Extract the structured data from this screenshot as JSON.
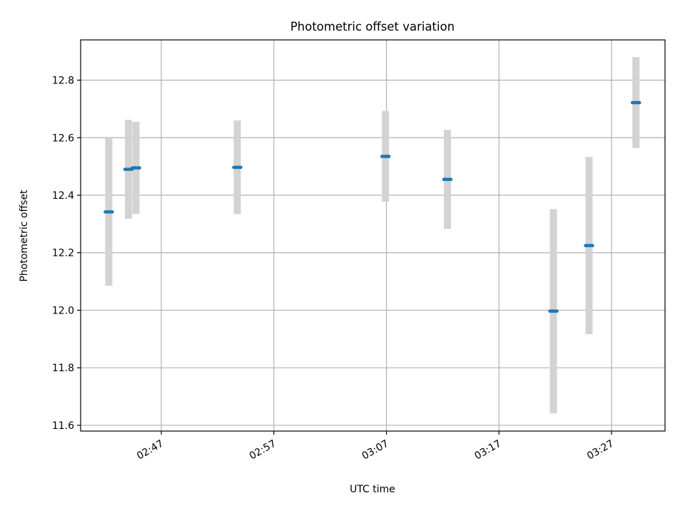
{
  "chart_data": {
    "type": "scatter",
    "title": "Photometric offset variation",
    "xlabel": "UTC time",
    "ylabel": "Photometric offset",
    "x_ticks": [
      "02:47",
      "02:57",
      "03:07",
      "03:17",
      "03:27"
    ],
    "y_ticks": [
      "11.6",
      "11.8",
      "12.0",
      "12.2",
      "12.4",
      "12.6",
      "12.8"
    ],
    "xlim": [
      "02:39:50",
      "03:31:45"
    ],
    "ylim": [
      11.58,
      12.94
    ],
    "grid": true,
    "colors": {
      "point": "#1f77b4",
      "errorbar": "#d3d3d3",
      "grid": "#b0b0b0"
    },
    "series": [
      {
        "points": [
          {
            "x": "02:42:20",
            "y": 12.342,
            "yerr": 0.257
          },
          {
            "x": "02:44:05",
            "y": 12.49,
            "yerr": 0.172
          },
          {
            "x": "02:44:45",
            "y": 12.495,
            "yerr": 0.16
          },
          {
            "x": "02:53:45",
            "y": 12.497,
            "yerr": 0.163
          },
          {
            "x": "03:06:55",
            "y": 12.535,
            "yerr": 0.158
          },
          {
            "x": "03:12:25",
            "y": 12.455,
            "yerr": 0.172
          },
          {
            "x": "03:21:50",
            "y": 11.997,
            "yerr": 0.355
          },
          {
            "x": "03:25:00",
            "y": 12.225,
            "yerr": 0.308
          },
          {
            "x": "03:29:10",
            "y": 12.722,
            "yerr": 0.158
          }
        ]
      }
    ]
  }
}
